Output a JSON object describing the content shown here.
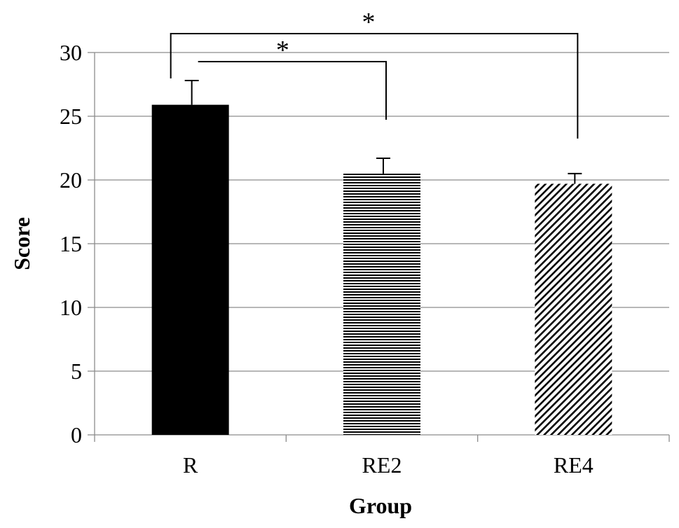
{
  "chart_data": {
    "type": "bar",
    "categories": [
      "R",
      "RE2",
      "RE4"
    ],
    "values": [
      25.9,
      20.5,
      19.7
    ],
    "errors": [
      1.9,
      1.2,
      0.8
    ],
    "fill_patterns": [
      "solid",
      "horizontal-lines",
      "diagonal-lines"
    ],
    "title": "",
    "xlabel": "Group",
    "ylabel": "Score",
    "ylim": [
      0,
      30
    ],
    "yticks": [
      0,
      5,
      10,
      15,
      20,
      25,
      30
    ],
    "grid": true,
    "significance": [
      {
        "from": "R",
        "to": "RE2",
        "label": "*"
      },
      {
        "from": "R",
        "to": "RE4",
        "label": "*"
      }
    ],
    "colors": {
      "bar": "#000000",
      "grid": "#8c8c8c",
      "axis": "#8c8c8c"
    }
  }
}
